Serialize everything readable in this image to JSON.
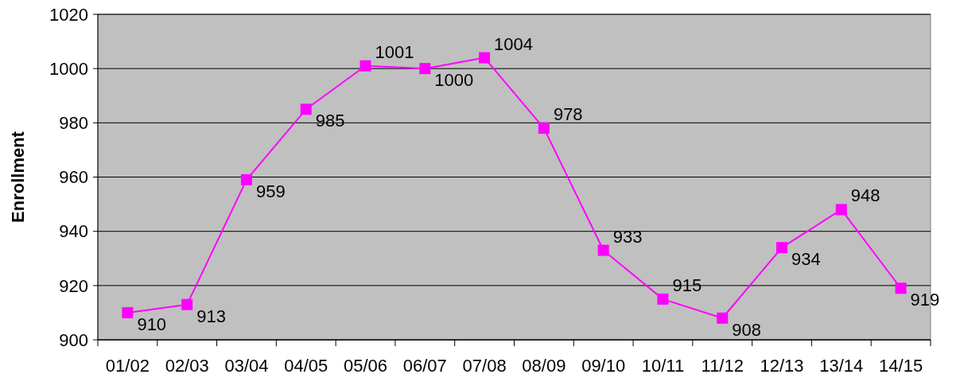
{
  "chart_data": {
    "type": "line",
    "ylabel": "Enrollment",
    "categories": [
      "01/02",
      "02/03",
      "03/04",
      "04/05",
      "05/06",
      "06/07",
      "07/08",
      "08/09",
      "09/10",
      "10/11",
      "11/12",
      "12/13",
      "13/14",
      "14/15"
    ],
    "series": [
      {
        "color": "#ff00ff",
        "values": [
          910,
          913,
          959,
          985,
          1001,
          1000,
          1004,
          978,
          933,
          915,
          908,
          934,
          948,
          919
        ]
      }
    ],
    "ylim": [
      900,
      1020
    ],
    "yticks": [
      900,
      920,
      940,
      960,
      980,
      1000,
      1020
    ],
    "grid": "y",
    "marker": "square",
    "line_style": "solid",
    "data_labels": true
  }
}
